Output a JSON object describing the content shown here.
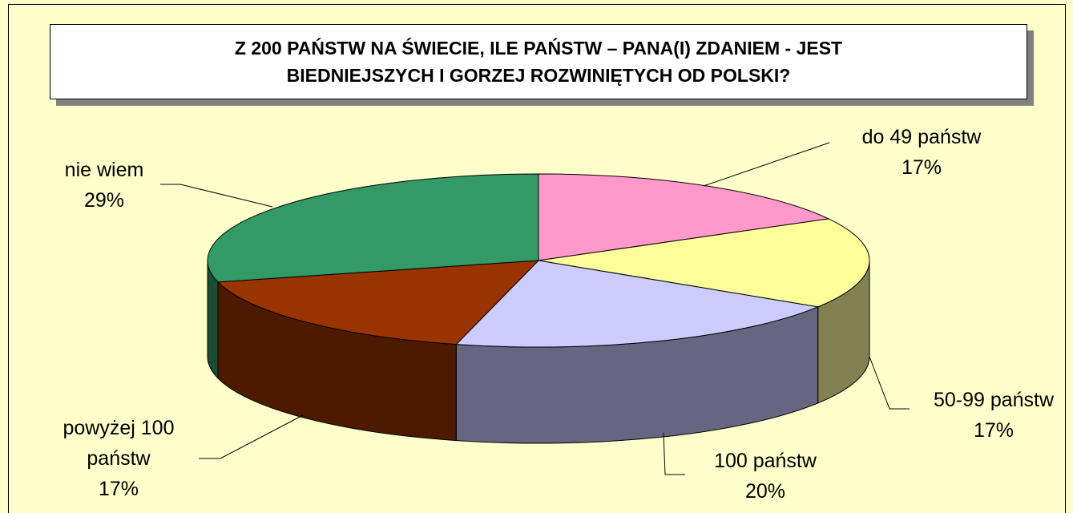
{
  "chart_data": {
    "type": "pie",
    "title": "Z 200 PAŃSTW NA ŚWIECIE, ILE PAŃSTW – PANA(I) ZDANIEM -  JEST BIEDNIEJSZYCH I GORZEJ ROZWINIĘTYCH OD POLSKI?",
    "categories": [
      "do 49 państw",
      "50-99 państw",
      "100 państw",
      "powyżej 100 państw",
      "nie wiem"
    ],
    "values": [
      17,
      17,
      20,
      17,
      29
    ],
    "value_labels": [
      "17%",
      "17%",
      "20%",
      "17%",
      "29%"
    ],
    "colors": [
      "#ff99cc",
      "#ffff99",
      "#ccccff",
      "#993300",
      "#339966"
    ],
    "side_colors": [
      "#805066",
      "#808050",
      "#666680",
      "#4d1a00",
      "#1a4d33"
    ]
  }
}
